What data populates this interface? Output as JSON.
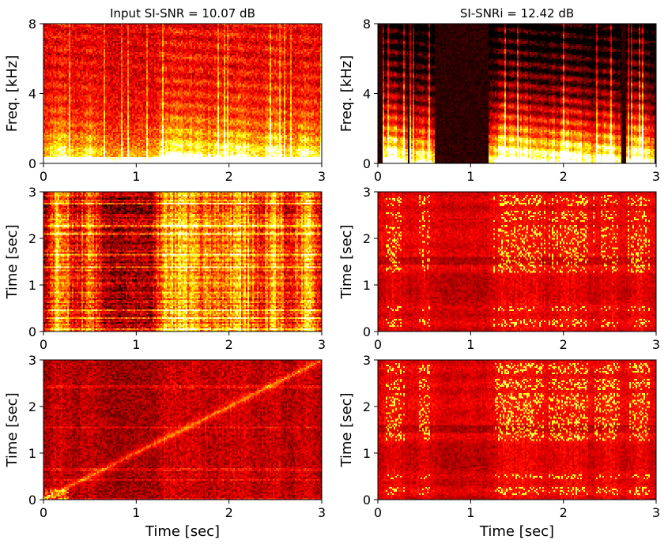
{
  "figure": {
    "colormap": "hot",
    "colors": {
      "frame": "#000000",
      "background": "#ffffff"
    }
  },
  "chart_data": [
    {
      "id": "spec-input",
      "type": "heatmap",
      "title": "Input SI-SNR = 10.07 dB",
      "xlabel": "",
      "ylabel": "Freq. [kHz]",
      "xlim": [
        0,
        3
      ],
      "ylim": [
        0,
        8
      ],
      "xticks": [
        "0",
        "1",
        "2",
        "3"
      ],
      "yticks": [
        "0",
        "4",
        "8"
      ],
      "xtick_values": [
        0,
        1,
        2,
        3
      ],
      "ytick_values": [
        0,
        4,
        8
      ],
      "kind": "spectrogram",
      "activity": [
        0.25,
        1,
        0.35,
        0.75,
        0.25,
        0.2,
        0.3,
        0.25,
        0.95,
        1,
        0.85,
        0.6,
        0.95,
        0.9,
        0.55,
        0.95,
        0.4,
        1,
        0.35
      ],
      "seed": 11
    },
    {
      "id": "spec-output",
      "type": "heatmap",
      "title": "SI-SNRi = 12.42 dB",
      "xlabel": "",
      "ylabel": "Freq. [kHz]",
      "xlim": [
        0,
        3
      ],
      "ylim": [
        0,
        8
      ],
      "xticks": [
        "0",
        "1",
        "2",
        "3"
      ],
      "yticks": [
        "0",
        "4",
        "8"
      ],
      "xtick_values": [
        0,
        1,
        2,
        3
      ],
      "ytick_values": [
        0,
        4,
        8
      ],
      "kind": "spectrogram-clean",
      "activity": [
        0.25,
        1,
        0.35,
        0.75,
        0.25,
        0.2,
        0.3,
        0.25,
        0.95,
        1,
        0.85,
        0.6,
        0.95,
        0.9,
        0.55,
        0.95,
        0.4,
        1,
        0.35
      ],
      "seed": 23
    },
    {
      "id": "attn-input-1",
      "type": "heatmap",
      "title": "",
      "xlabel": "",
      "ylabel": "Time [sec]",
      "xlim": [
        0,
        3
      ],
      "ylim": [
        0,
        3
      ],
      "xticks": [
        "0",
        "1",
        "2",
        "3"
      ],
      "yticks": [
        "0",
        "1",
        "2",
        "3"
      ],
      "xtick_values": [
        0,
        1,
        2,
        3
      ],
      "ytick_values": [
        0,
        1,
        2,
        3
      ],
      "kind": "stripes",
      "activity": [
        0.25,
        1,
        0.35,
        0.75,
        0.25,
        0.2,
        0.3,
        0.25,
        0.95,
        1,
        0.85,
        0.6,
        0.95,
        0.9,
        0.55,
        0.95,
        0.4,
        1,
        0.35
      ],
      "seed": 37
    },
    {
      "id": "attn-output-1",
      "type": "heatmap",
      "title": "",
      "xlabel": "",
      "ylabel": "Time [sec]",
      "xlim": [
        0,
        3
      ],
      "ylim": [
        0,
        3
      ],
      "xticks": [
        "0",
        "1",
        "2",
        "3"
      ],
      "yticks": [
        "0",
        "1",
        "2",
        "3"
      ],
      "xtick_values": [
        0,
        1,
        2,
        3
      ],
      "ytick_values": [
        0,
        1,
        2,
        3
      ],
      "kind": "grid",
      "activity": [
        0.25,
        1,
        0.35,
        0.75,
        0.25,
        0.2,
        0.3,
        0.25,
        0.95,
        1,
        0.85,
        0.6,
        0.95,
        0.9,
        0.55,
        0.95,
        0.4,
        1,
        0.35
      ],
      "seed": 41
    },
    {
      "id": "attn-input-2",
      "type": "heatmap",
      "title": "",
      "xlabel": "Time [sec]",
      "ylabel": "Time [sec]",
      "xlim": [
        0,
        3
      ],
      "ylim": [
        0,
        3
      ],
      "xticks": [
        "0",
        "1",
        "2",
        "3"
      ],
      "yticks": [
        "0",
        "1",
        "2",
        "3"
      ],
      "xtick_values": [
        0,
        1,
        2,
        3
      ],
      "ytick_values": [
        0,
        1,
        2,
        3
      ],
      "kind": "diagonal",
      "activity": [
        0.25,
        1,
        0.35,
        0.75,
        0.25,
        0.2,
        0.3,
        0.25,
        0.95,
        1,
        0.85,
        0.6,
        0.95,
        0.9,
        0.55,
        0.95,
        0.4,
        1,
        0.35
      ],
      "seed": 53
    },
    {
      "id": "attn-output-2",
      "type": "heatmap",
      "title": "",
      "xlabel": "Time [sec]",
      "ylabel": "Time [sec]",
      "xlim": [
        0,
        3
      ],
      "ylim": [
        0,
        3
      ],
      "xticks": [
        "0",
        "1",
        "2",
        "3"
      ],
      "yticks": [
        "0",
        "1",
        "2",
        "3"
      ],
      "xtick_values": [
        0,
        1,
        2,
        3
      ],
      "ytick_values": [
        0,
        1,
        2,
        3
      ],
      "kind": "grid",
      "activity": [
        0.25,
        1,
        0.35,
        0.75,
        0.25,
        0.2,
        0.3,
        0.25,
        0.95,
        1,
        0.85,
        0.6,
        0.95,
        0.9,
        0.55,
        0.95,
        0.4,
        1,
        0.35
      ],
      "seed": 67
    }
  ]
}
